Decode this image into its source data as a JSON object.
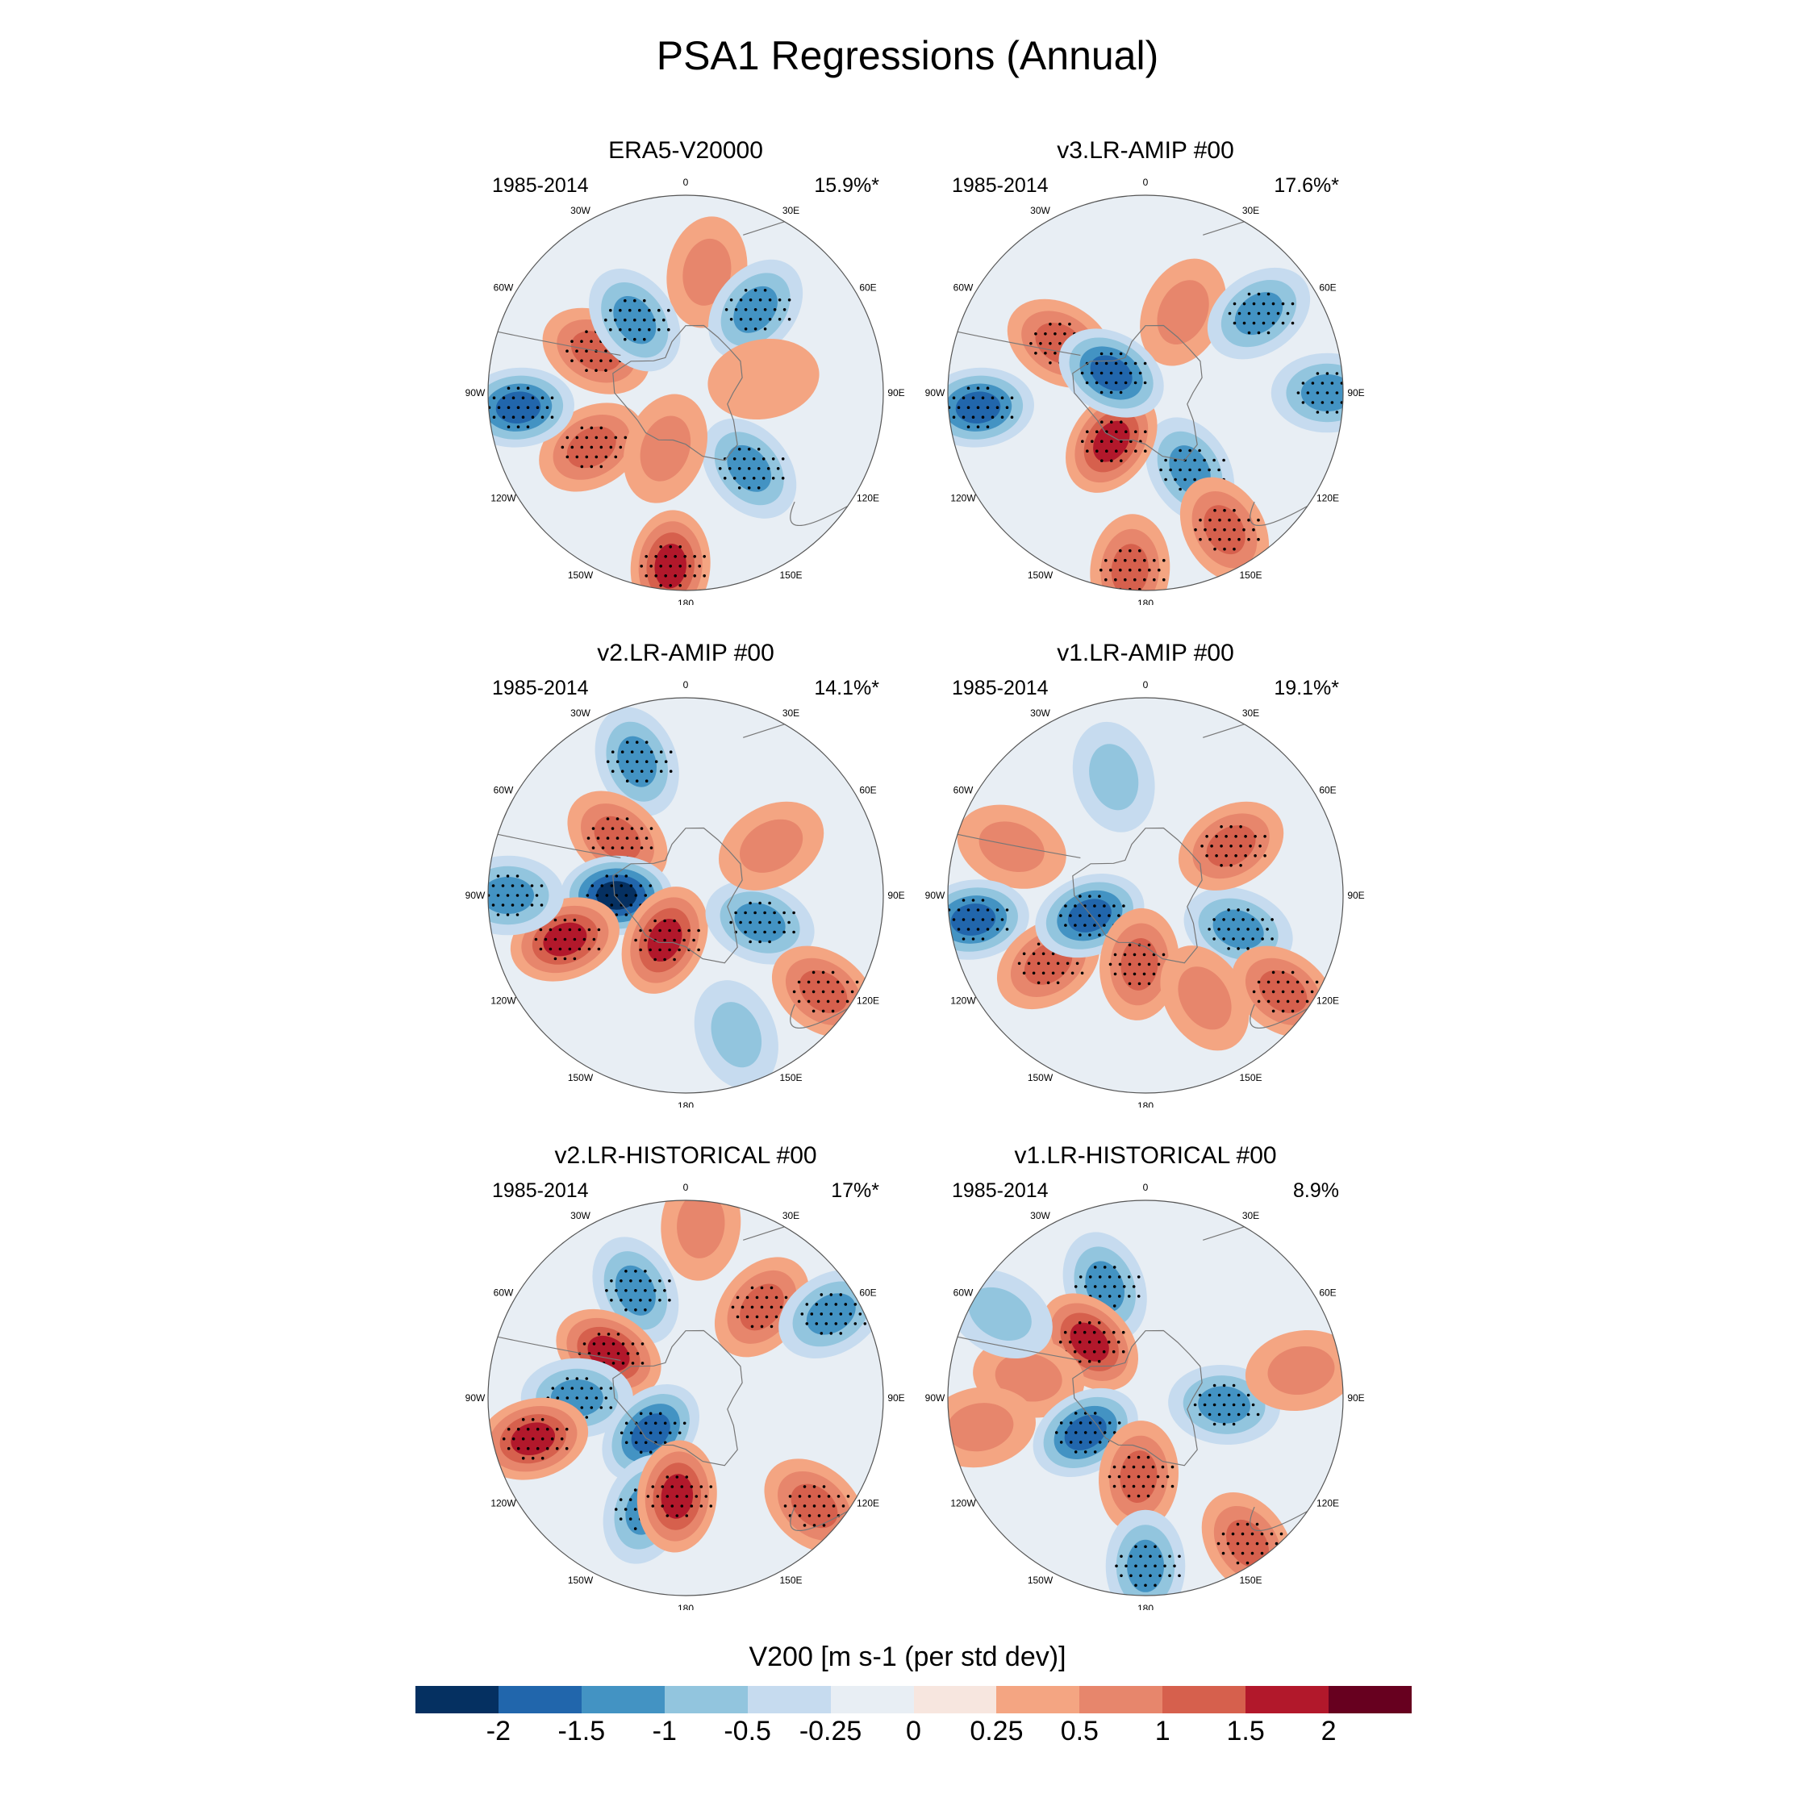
{
  "title": "PSA1 Regressions (Annual)",
  "panels": [
    {
      "title": "ERA5-V20000",
      "period": "1985-2014",
      "variance": "15.9%*"
    },
    {
      "title": "v3.LR-AMIP  #00",
      "period": "1985-2014",
      "variance": "17.6%*"
    },
    {
      "title": "v2.LR-AMIP  #00",
      "period": "1985-2014",
      "variance": "14.1%*"
    },
    {
      "title": "v1.LR-AMIP  #00",
      "period": "1985-2014",
      "variance": "19.1%*"
    },
    {
      "title": "v2.LR-HISTORICAL  #00",
      "period": "1985-2014",
      "variance": "17%*"
    },
    {
      "title": "v1.LR-HISTORICAL  #00",
      "period": "1985-2014",
      "variance": "8.9%"
    }
  ],
  "longitude_labels": [
    "0",
    "30E",
    "60E",
    "90E",
    "120E",
    "150E",
    "180",
    "150W",
    "120W",
    "90W",
    "60W",
    "30W"
  ],
  "colorbar": {
    "title": "V200 [m s-1 (per std dev)]",
    "tick_labels": [
      "-2",
      "-1.5",
      "-1",
      "-0.5",
      "-0.25",
      "0",
      "0.25",
      "0.5",
      "1",
      "1.5",
      "2"
    ],
    "colors": [
      "#053061",
      "#2166ac",
      "#4393c3",
      "#92c5de",
      "#c6dbef",
      "#e8eef4",
      "#f7e6df",
      "#f4a582",
      "#e7866c",
      "#d6604d",
      "#b2182b",
      "#67001f"
    ]
  },
  "anomaly_centers": [
    [
      {
        "lon": 10,
        "r": 0.62,
        "v": 0.9
      },
      {
        "lon": 40,
        "r": 0.55,
        "v": -1.0
      },
      {
        "lon": 80,
        "r": 0.4,
        "v": 0.4
      },
      {
        "lon": 140,
        "r": 0.5,
        "v": -1.3
      },
      {
        "lon": 185,
        "r": 0.88,
        "v": 1.6
      },
      {
        "lon": 240,
        "r": 0.55,
        "v": 1.1
      },
      {
        "lon": 265,
        "r": 0.85,
        "v": -1.6
      },
      {
        "lon": 295,
        "r": 0.5,
        "v": 1.1
      },
      {
        "lon": 325,
        "r": 0.45,
        "v": -1.3
      },
      {
        "lon": 200,
        "r": 0.3,
        "v": 0.6
      }
    ],
    [
      {
        "lon": 25,
        "r": 0.45,
        "v": 0.9
      },
      {
        "lon": 55,
        "r": 0.7,
        "v": -1.1
      },
      {
        "lon": 90,
        "r": 0.92,
        "v": -1.0
      },
      {
        "lon": 150,
        "r": 0.45,
        "v": -1.4
      },
      {
        "lon": 150,
        "r": 0.8,
        "v": 1.3
      },
      {
        "lon": 215,
        "r": 0.3,
        "v": 1.9
      },
      {
        "lon": 265,
        "r": 0.85,
        "v": -1.7
      },
      {
        "lon": 300,
        "r": 0.5,
        "v": 1.2
      },
      {
        "lon": 300,
        "r": 0.2,
        "v": -1.6
      },
      {
        "lon": 185,
        "r": 0.9,
        "v": 1.0
      }
    ],
    [
      {
        "lon": 340,
        "r": 0.72,
        "v": -1.2
      },
      {
        "lon": 310,
        "r": 0.45,
        "v": 1.2
      },
      {
        "lon": 270,
        "r": 0.35,
        "v": -2.0
      },
      {
        "lon": 250,
        "r": 0.65,
        "v": 1.7
      },
      {
        "lon": 205,
        "r": 0.25,
        "v": 1.6
      },
      {
        "lon": 110,
        "r": 0.4,
        "v": -1.0
      },
      {
        "lon": 125,
        "r": 0.85,
        "v": 1.0
      },
      {
        "lon": 160,
        "r": 0.75,
        "v": -0.6
      },
      {
        "lon": 270,
        "r": 0.9,
        "v": -1.0
      },
      {
        "lon": 60,
        "r": 0.5,
        "v": 0.5
      }
    ],
    [
      {
        "lon": 345,
        "r": 0.62,
        "v": -0.8
      },
      {
        "lon": 290,
        "r": 0.72,
        "v": 0.9
      },
      {
        "lon": 262,
        "r": 0.88,
        "v": -1.6
      },
      {
        "lon": 235,
        "r": 0.6,
        "v": 1.2
      },
      {
        "lon": 250,
        "r": 0.3,
        "v": -1.6
      },
      {
        "lon": 185,
        "r": 0.35,
        "v": 1.4
      },
      {
        "lon": 110,
        "r": 0.5,
        "v": -1.3
      },
      {
        "lon": 60,
        "r": 0.5,
        "v": 1.1
      },
      {
        "lon": 125,
        "r": 0.85,
        "v": 1.2
      },
      {
        "lon": 150,
        "r": 0.6,
        "v": 0.5
      }
    ],
    [
      {
        "lon": 5,
        "r": 0.88,
        "v": 0.7
      },
      {
        "lon": 335,
        "r": 0.6,
        "v": -1.2
      },
      {
        "lon": 300,
        "r": 0.45,
        "v": 1.5
      },
      {
        "lon": 270,
        "r": 0.55,
        "v": -1.1
      },
      {
        "lon": 225,
        "r": 0.25,
        "v": -1.8
      },
      {
        "lon": 255,
        "r": 0.8,
        "v": 1.5
      },
      {
        "lon": 200,
        "r": 0.6,
        "v": -1.1
      },
      {
        "lon": 185,
        "r": 0.5,
        "v": 1.6
      },
      {
        "lon": 40,
        "r": 0.6,
        "v": 1.0
      },
      {
        "lon": 130,
        "r": 0.85,
        "v": 1.0
      },
      {
        "lon": 60,
        "r": 0.85,
        "v": -1.0
      }
    ],
    [
      {
        "lon": 340,
        "r": 0.6,
        "v": -1.1
      },
      {
        "lon": 315,
        "r": 0.4,
        "v": 1.6
      },
      {
        "lon": 280,
        "r": 0.6,
        "v": 0.7
      },
      {
        "lon": 240,
        "r": 0.35,
        "v": -1.5
      },
      {
        "lon": 185,
        "r": 0.4,
        "v": 1.0
      },
      {
        "lon": 180,
        "r": 0.85,
        "v": -1.4
      },
      {
        "lon": 95,
        "r": 0.4,
        "v": -1.2
      },
      {
        "lon": 80,
        "r": 0.8,
        "v": 0.9
      },
      {
        "lon": 260,
        "r": 0.85,
        "v": 0.5
      },
      {
        "lon": 300,
        "r": 0.85,
        "v": -0.6
      },
      {
        "lon": 145,
        "r": 0.9,
        "v": 1.1
      }
    ]
  ]
}
